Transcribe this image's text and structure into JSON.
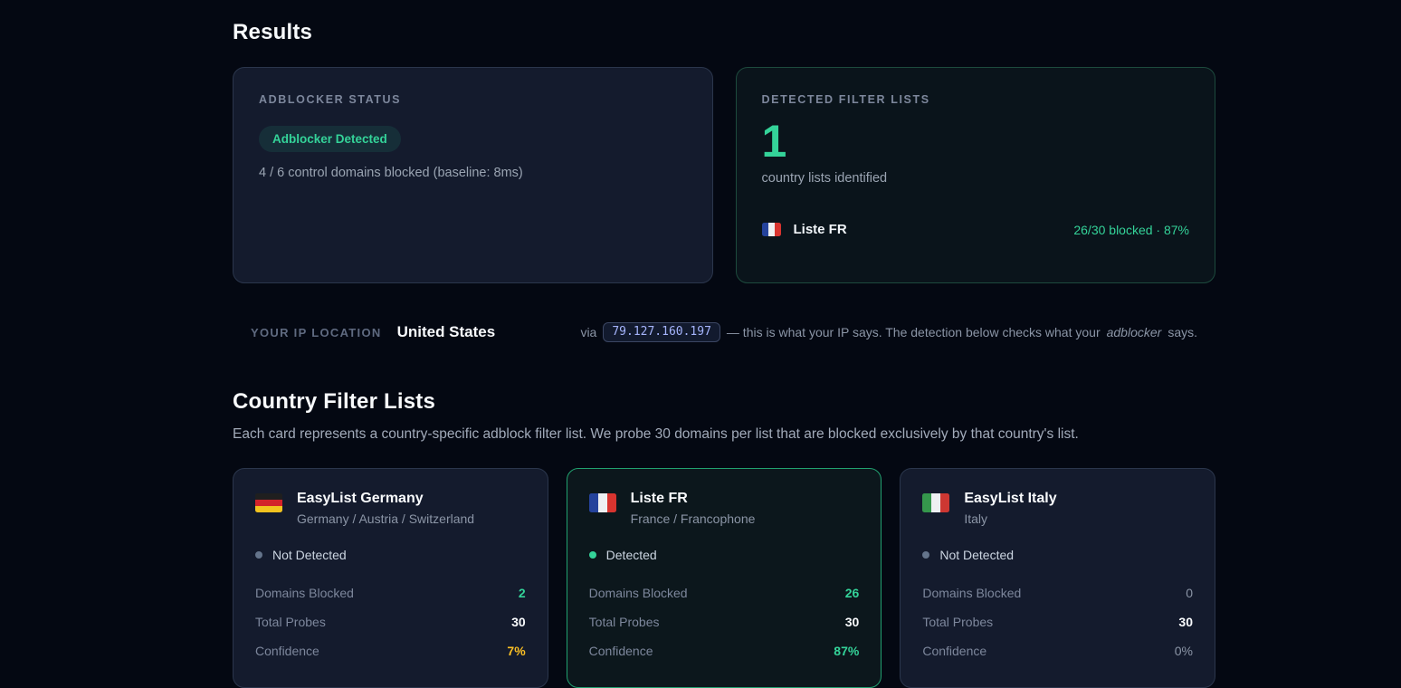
{
  "colors": {
    "accent_green": "#34d399",
    "warning_amber": "#fbbf24",
    "ip_mono_text": "#a5b4fc",
    "detected_card_border": "#21a06f",
    "page_background": "#040812"
  },
  "results": {
    "title": "Results",
    "adblocker_status": {
      "label": "ADBLOCKER STATUS",
      "badge": "Adblocker Detected",
      "detail": "4 / 6 control domains blocked (baseline: 8ms)"
    },
    "detected_lists": {
      "label": "DETECTED FILTER LISTS",
      "count": "1",
      "caption": "country lists identified",
      "item": {
        "flag": "france-flag",
        "name": "Liste FR",
        "stat": "26/30 blocked · 87%"
      }
    }
  },
  "ip_location": {
    "label": "YOUR IP LOCATION",
    "country": "United States",
    "via": "via",
    "ip": "79.127.160.197",
    "note_before": "— this is what your IP says. The detection below checks what your",
    "note_italic": "adblocker",
    "note_after": "says."
  },
  "country_lists": {
    "title": "Country Filter Lists",
    "description": "Each card represents a country-specific adblock filter list. We probe 30 domains per list that are blocked exclusively by that country's list.",
    "stat_labels": {
      "domains": "Domains Blocked",
      "probes": "Total Probes",
      "confidence": "Confidence"
    },
    "cards": [
      {
        "flag": "germany-flag",
        "title": "EasyList Germany",
        "subtitle": "Germany / Austria / Switzerland",
        "status": "Not Detected",
        "domains_blocked": "2",
        "total_probes": "30",
        "confidence": "7%"
      },
      {
        "flag": "france-flag",
        "title": "Liste FR",
        "subtitle": "France / Francophone",
        "status": "Detected",
        "domains_blocked": "26",
        "total_probes": "30",
        "confidence": "87%"
      },
      {
        "flag": "italy-flag",
        "title": "EasyList Italy",
        "subtitle": "Italy",
        "status": "Not Detected",
        "domains_blocked": "0",
        "total_probes": "30",
        "confidence": "0%"
      }
    ]
  }
}
